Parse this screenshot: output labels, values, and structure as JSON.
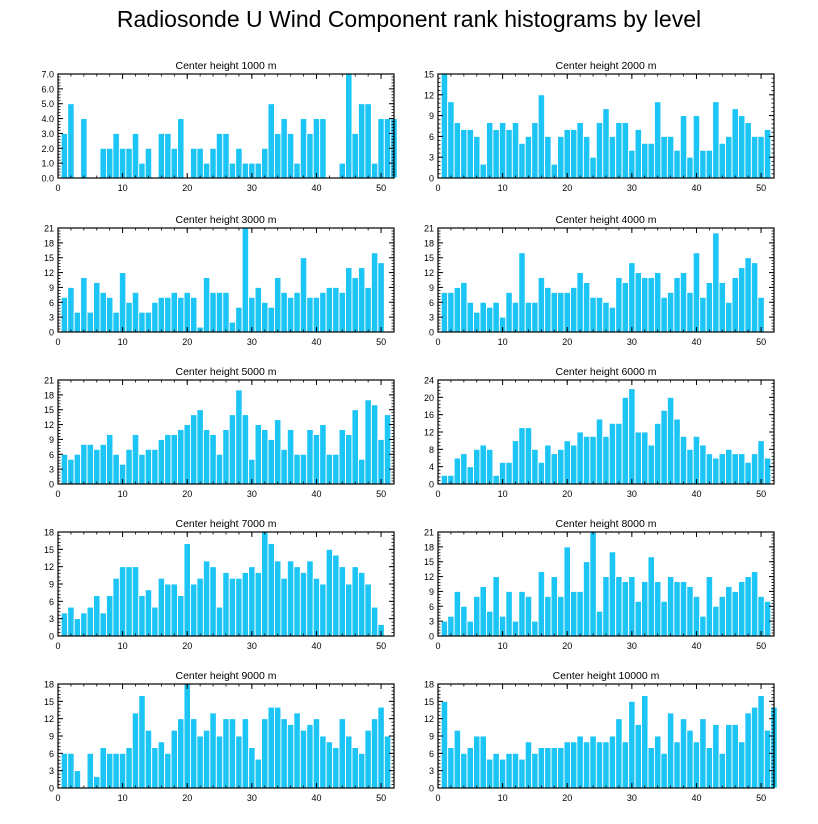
{
  "title": "Radiosonde U Wind Component rank histograms by level",
  "colors": {
    "bar": "#1cc5f6",
    "bar_edge": "#ffffff",
    "axis": "#000000"
  },
  "chart_data": [
    {
      "type": "bar",
      "title": "Center height 1000 m",
      "ylim": [
        0,
        7
      ],
      "yticks": [
        "0.0",
        "1.0",
        "2.0",
        "3.0",
        "4.0",
        "5.0",
        "6.0",
        "7.0"
      ],
      "xticks": [
        "0",
        "10",
        "20",
        "30",
        "40",
        "50"
      ],
      "xlabel": "",
      "ylabel": "",
      "values": [
        3,
        5,
        0,
        4,
        0,
        0,
        2,
        2,
        3,
        2,
        2,
        3,
        1,
        2,
        0,
        3,
        3,
        2,
        4,
        0,
        2,
        2,
        1,
        2,
        3,
        3,
        1,
        2,
        1,
        1,
        1,
        2,
        5,
        3,
        4,
        3,
        1,
        4,
        3,
        4,
        4,
        0,
        0,
        1,
        7,
        3,
        5,
        5,
        1,
        4,
        4,
        4
      ]
    },
    {
      "type": "bar",
      "title": "Center height 2000 m",
      "ylim": [
        0,
        15
      ],
      "yticks": [
        "0",
        "3",
        "6",
        "9",
        "12",
        "15"
      ],
      "xticks": [
        "0",
        "10",
        "20",
        "30",
        "40",
        "50"
      ],
      "xlabel": "",
      "ylabel": "",
      "values": [
        15,
        11,
        8,
        7,
        7,
        6,
        2,
        8,
        7,
        8,
        7,
        8,
        5,
        6,
        8,
        12,
        6,
        2,
        6,
        7,
        7,
        8,
        6,
        3,
        8,
        10,
        6,
        8,
        8,
        4,
        7,
        5,
        5,
        11,
        6,
        6,
        4,
        9,
        3,
        9,
        4,
        4,
        11,
        5,
        6,
        10,
        9,
        8,
        6,
        6,
        7
      ]
    },
    {
      "type": "bar",
      "title": "Center height 3000 m",
      "ylim": [
        0,
        21
      ],
      "yticks": [
        "0",
        "3",
        "6",
        "9",
        "12",
        "15",
        "18",
        "21"
      ],
      "xticks": [
        "0",
        "10",
        "20",
        "30",
        "40",
        "50"
      ],
      "xlabel": "",
      "ylabel": "",
      "values": [
        7,
        9,
        4,
        11,
        4,
        10,
        8,
        7,
        4,
        12,
        6,
        8,
        4,
        4,
        6,
        7,
        7,
        8,
        7,
        8,
        7,
        1,
        11,
        8,
        8,
        8,
        2,
        5,
        21,
        7,
        9,
        6,
        5,
        11,
        8,
        7,
        8,
        15,
        7,
        7,
        8,
        9,
        9,
        8,
        13,
        11,
        13,
        9,
        16,
        14
      ]
    },
    {
      "type": "bar",
      "title": "Center height 4000 m",
      "ylim": [
        0,
        21
      ],
      "yticks": [
        "0",
        "3",
        "6",
        "9",
        "12",
        "15",
        "18",
        "21"
      ],
      "xticks": [
        "0",
        "10",
        "20",
        "30",
        "40",
        "50"
      ],
      "xlabel": "",
      "ylabel": "",
      "values": [
        8,
        8,
        9,
        10,
        6,
        4,
        6,
        5,
        6,
        3,
        8,
        6,
        16,
        6,
        6,
        11,
        9,
        8,
        8,
        8,
        9,
        12,
        10,
        7,
        7,
        6,
        5,
        11,
        10,
        14,
        12,
        11,
        11,
        12,
        7,
        8,
        11,
        12,
        8,
        16,
        7,
        10,
        20,
        10,
        6,
        11,
        13,
        15,
        14,
        7
      ]
    },
    {
      "type": "bar",
      "title": "Center height 5000 m",
      "ylim": [
        0,
        21
      ],
      "yticks": [
        "0",
        "3",
        "6",
        "9",
        "12",
        "15",
        "18",
        "21"
      ],
      "xticks": [
        "0",
        "10",
        "20",
        "30",
        "40",
        "50"
      ],
      "xlabel": "",
      "ylabel": "",
      "values": [
        6,
        5,
        6,
        8,
        8,
        7,
        8,
        10,
        6,
        4,
        7,
        10,
        6,
        7,
        7,
        9,
        10,
        10,
        11,
        12,
        14,
        15,
        11,
        10,
        6,
        11,
        14,
        19,
        14,
        5,
        12,
        11,
        9,
        13,
        7,
        11,
        6,
        6,
        11,
        10,
        12,
        6,
        6,
        11,
        10,
        15,
        5,
        17,
        16,
        9,
        14
      ]
    },
    {
      "type": "bar",
      "title": "Center height 6000 m",
      "ylim": [
        0,
        24
      ],
      "yticks": [
        "0",
        "4",
        "8",
        "12",
        "16",
        "20",
        "24"
      ],
      "xticks": [
        "0",
        "10",
        "20",
        "30",
        "40",
        "50"
      ],
      "xlabel": "",
      "ylabel": "",
      "values": [
        2,
        2,
        6,
        7,
        4,
        8,
        9,
        8,
        2,
        5,
        5,
        10,
        13,
        13,
        8,
        5,
        9,
        7,
        8,
        10,
        9,
        12,
        11,
        11,
        15,
        11,
        14,
        14,
        20,
        22,
        12,
        12,
        9,
        14,
        17,
        20,
        15,
        11,
        8,
        11,
        9,
        7,
        6,
        7,
        8,
        7,
        7,
        5,
        7,
        10,
        6
      ]
    },
    {
      "type": "bar",
      "title": "Center height 7000 m",
      "ylim": [
        0,
        18
      ],
      "yticks": [
        "0",
        "3",
        "6",
        "9",
        "12",
        "15",
        "18"
      ],
      "xticks": [
        "0",
        "10",
        "20",
        "30",
        "40",
        "50"
      ],
      "xlabel": "",
      "ylabel": "",
      "values": [
        4,
        5,
        3,
        4,
        5,
        7,
        4,
        7,
        10,
        12,
        12,
        12,
        7,
        8,
        5,
        10,
        9,
        9,
        7,
        16,
        9,
        10,
        13,
        12,
        5,
        11,
        10,
        10,
        11,
        12,
        11,
        18,
        16,
        13,
        10,
        13,
        12,
        11,
        13,
        10,
        9,
        15,
        14,
        12,
        9,
        12,
        11,
        9,
        5,
        2
      ]
    },
    {
      "type": "bar",
      "title": "Center height 8000 m",
      "ylim": [
        0,
        21
      ],
      "yticks": [
        "0",
        "3",
        "6",
        "9",
        "12",
        "15",
        "18",
        "21"
      ],
      "xticks": [
        "0",
        "10",
        "20",
        "30",
        "40",
        "50"
      ],
      "xlabel": "",
      "ylabel": "",
      "values": [
        3,
        4,
        9,
        6,
        3,
        8,
        10,
        5,
        12,
        4,
        9,
        3,
        9,
        8,
        3,
        13,
        8,
        12,
        8,
        18,
        9,
        9,
        15,
        21,
        5,
        12,
        17,
        12,
        11,
        12,
        7,
        11,
        16,
        11,
        7,
        12,
        11,
        11,
        10,
        8,
        4,
        12,
        6,
        8,
        10,
        9,
        11,
        12,
        13,
        8,
        7
      ]
    },
    {
      "type": "bar",
      "title": "Center height 9000 m",
      "ylim": [
        0,
        18
      ],
      "yticks": [
        "0",
        "3",
        "6",
        "9",
        "12",
        "15",
        "18"
      ],
      "xticks": [
        "0",
        "10",
        "20",
        "30",
        "40",
        "50"
      ],
      "xlabel": "",
      "ylabel": "",
      "values": [
        6,
        6,
        3,
        0,
        6,
        2,
        7,
        6,
        6,
        6,
        7,
        13,
        16,
        10,
        7,
        8,
        6,
        10,
        12,
        18,
        12,
        9,
        10,
        13,
        9,
        12,
        12,
        9,
        12,
        7,
        5,
        12,
        14,
        14,
        12,
        11,
        13,
        10,
        11,
        12,
        9,
        8,
        7,
        12,
        9,
        7,
        6,
        10,
        12,
        14,
        9
      ]
    },
    {
      "type": "bar",
      "title": "Center height 10000 m",
      "ylim": [
        0,
        18
      ],
      "yticks": [
        "0",
        "3",
        "6",
        "9",
        "12",
        "15",
        "18"
      ],
      "xticks": [
        "0",
        "10",
        "20",
        "30",
        "40",
        "50"
      ],
      "xlabel": "",
      "ylabel": "",
      "values": [
        15,
        7,
        10,
        6,
        7,
        9,
        9,
        5,
        6,
        5,
        6,
        6,
        5,
        8,
        6,
        7,
        7,
        7,
        7,
        8,
        8,
        9,
        8,
        9,
        8,
        8,
        9,
        12,
        8,
        15,
        11,
        16,
        7,
        9,
        6,
        13,
        8,
        12,
        10,
        8,
        12,
        7,
        11,
        6,
        11,
        11,
        8,
        13,
        14,
        16,
        10,
        14
      ]
    }
  ]
}
